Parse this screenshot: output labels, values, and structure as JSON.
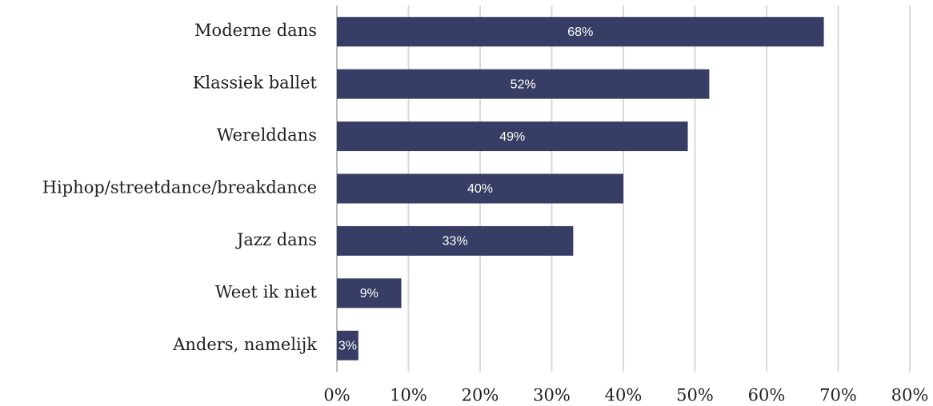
{
  "chart_data": {
    "type": "bar",
    "orientation": "horizontal",
    "categories": [
      "Moderne dans",
      "Klassiek ballet",
      "Werelddans",
      "Hiphop/streetdance/breakdance",
      "Jazz dans",
      "Weet ik niet",
      "Anders, namelijk"
    ],
    "values": [
      68,
      52,
      49,
      40,
      33,
      9,
      3
    ],
    "value_labels": [
      "68%",
      "52%",
      "49%",
      "40%",
      "33%",
      "9%",
      "3%"
    ],
    "color": "#383d65",
    "xlim": [
      0,
      80
    ],
    "xticks": [
      {
        "value": 0,
        "label": "0%"
      },
      {
        "value": 10,
        "label": "10%"
      },
      {
        "value": 20,
        "label": "20%"
      },
      {
        "value": 30,
        "label": "30%"
      },
      {
        "value": 40,
        "label": "40%"
      },
      {
        "value": 50,
        "label": "50%"
      },
      {
        "value": 60,
        "label": "60%"
      },
      {
        "value": 70,
        "label": "70%"
      },
      {
        "value": 80,
        "label": "80%"
      }
    ],
    "grid": true
  }
}
